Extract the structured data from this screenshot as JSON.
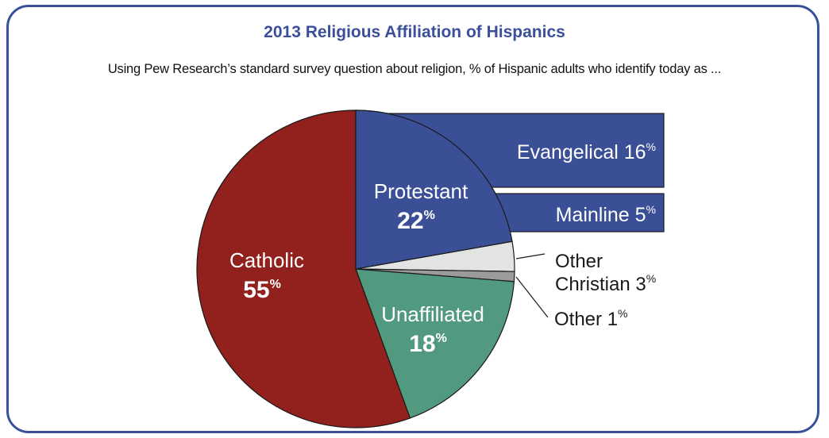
{
  "chart_data": {
    "type": "pie",
    "title": "2013 Religious Affiliation of Hispanics",
    "subtitle": "Using Pew Research’s standard survey question about religion, % of Hispanic adults who identify today as ...",
    "slices": [
      {
        "key": "protestant",
        "label": "Protestant",
        "value": 22,
        "value_text": "22",
        "unit": "%",
        "color": "#3b4f97"
      },
      {
        "key": "other_christian",
        "label": "Other Christian",
        "label_lines": [
          "Other",
          "Christian 3"
        ],
        "value": 3,
        "value_text": "3",
        "unit": "%",
        "color": "#e2e3e3"
      },
      {
        "key": "other",
        "label": "Other",
        "label_lines": [
          "Other 1"
        ],
        "value": 1,
        "value_text": "1",
        "unit": "%",
        "color": "#9b9b9b"
      },
      {
        "key": "unaffiliated",
        "label": "Unaffiliated",
        "value": 18,
        "value_text": "18",
        "unit": "%",
        "color": "#519a80"
      },
      {
        "key": "catholic",
        "label": "Catholic",
        "value": 55,
        "value_text": "55",
        "unit": "%",
        "color": "#92201c"
      }
    ],
    "breakdown": {
      "parent": "protestant",
      "items": [
        {
          "label": "Evangelical",
          "value": 16,
          "value_text": "Evangelical 16",
          "unit": "%",
          "color": "#3b4f97"
        },
        {
          "label": "Mainline",
          "value": 5,
          "value_text": "Mainline 5",
          "unit": "%",
          "color": "#3b4f97"
        }
      ]
    }
  },
  "colors": {
    "frame": "#3a5199",
    "title": "#3b4f9a",
    "text_on_dark": "#ffffff",
    "text_dark": "#1a1a1a",
    "slice_border": "#1a1a1a"
  }
}
